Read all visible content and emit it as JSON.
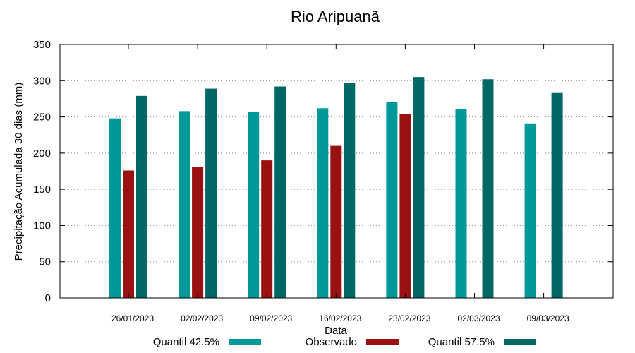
{
  "chart_data": {
    "type": "bar",
    "title": "Rio Aripuanã",
    "xlabel": "Data",
    "ylabel": "Precipitação Acumulada 30 dias (mm)",
    "ylim": [
      0,
      350
    ],
    "yticks": [
      0,
      50,
      100,
      150,
      200,
      250,
      300,
      350
    ],
    "grid": true,
    "legend_position": "bottom",
    "categories": [
      "26/01/2023",
      "02/02/2023",
      "09/02/2023",
      "16/02/2023",
      "23/02/2023",
      "02/03/2023",
      "09/03/2023"
    ],
    "series": [
      {
        "name": "Quantil 42.5%",
        "color": "#009999",
        "values": [
          248,
          258,
          257,
          262,
          271,
          261,
          241
        ]
      },
      {
        "name": "Observado",
        "color": "#991111",
        "values": [
          176,
          181,
          190,
          210,
          254,
          null,
          null
        ]
      },
      {
        "name": "Quantil 57.5%",
        "color": "#006666",
        "values": [
          279,
          289,
          292,
          297,
          305,
          302,
          283
        ]
      }
    ]
  }
}
